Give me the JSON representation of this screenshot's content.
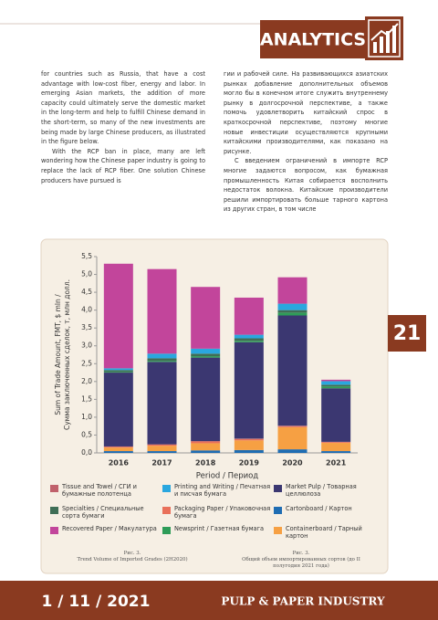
{
  "header": {
    "section": "ANALYTICS"
  },
  "page_number": "21",
  "left_column": [
    "for countries such as Russia, that have a cost advantage with low-cost fiber, energy and labor. In emerging Asian markets, the addition of more capacity could ultimately serve the domestic market in the long-term and help to fulfill Chinese demand in the short-term, so many of the new investments are being made by large Chinese producers, as illustrated in the figure below.",
    "With the RCP ban in place, many are left wondering how the Chinese paper industry is going to replace the lack of RCP fiber. One solution Chinese producers have pursued is"
  ],
  "right_column": [
    "гии и рабочей силе. На развивающихся азиатских рынках добавление дополнительных объемов могло бы в конечном итоге служить внутреннему рынку в долгосрочной перспективе, а также помочь удовлетворить китайский спрос в краткосрочной перспективе, поэтому многие новые инвестиции осуществляются крупными китайскими производителями, как показано на рисунке.",
    "С введением ограничений в импорте RCP многие задаются вопросом, как бумажная промышленность Китая собирается восполнить недостаток волокна. Китайские производители решили импортировать больше тарного картона из других стран, в том числе"
  ],
  "chart_data": {
    "type": "stacked_bar",
    "xlabel": "Period / Период",
    "ylabel": [
      "Sum of Trade Amount, FMT, $ mln /",
      "Сумма заключенных сделок, т, млн долл."
    ],
    "categories": [
      "2016",
      "2017",
      "2018",
      "2019",
      "2020",
      "2021"
    ],
    "ylim": [
      0,
      5.5
    ],
    "yticks": [
      {
        "value": 0,
        "label": "0,0"
      },
      {
        "value": 0.5,
        "label": "0,5"
      },
      {
        "value": 1,
        "label": "1,0"
      },
      {
        "value": 1.5,
        "label": "1,5"
      },
      {
        "value": 2,
        "label": "2,0"
      },
      {
        "value": 2.5,
        "label": "2,5"
      },
      {
        "value": 3,
        "label": "3,0"
      },
      {
        "value": 3.5,
        "label": "3,5"
      },
      {
        "value": 4,
        "label": "4,0"
      },
      {
        "value": 4.5,
        "label": "4,5"
      },
      {
        "value": 5,
        "label": "5,0"
      },
      {
        "value": 5.5,
        "label": "5,5"
      }
    ],
    "grid": false,
    "series": [
      {
        "name": "Cartonboard / Картон",
        "color": "#1f6db3",
        "values": [
          0.05,
          0.05,
          0.07,
          0.08,
          0.1,
          0.05
        ]
      },
      {
        "name": "Containerboard / Тарный картон",
        "color": "#f6a043",
        "values": [
          0.1,
          0.15,
          0.2,
          0.27,
          0.62,
          0.23
        ]
      },
      {
        "name": "Packaging Paper / Упаковочная бумага",
        "color": "#e9705a",
        "values": [
          0.02,
          0.03,
          0.05,
          0.04,
          0.03,
          0.02
        ]
      },
      {
        "name": "Tissue and Towel / СГИ и бумажные полотенца",
        "color": "#c0616b",
        "values": [
          0.01,
          0.01,
          0.01,
          0.01,
          0.01,
          0.01
        ]
      },
      {
        "name": "Market Pulp / Товарная целлюлоза",
        "color": "#3b3771",
        "values": [
          2.07,
          2.31,
          2.34,
          2.7,
          3.09,
          1.5
        ]
      },
      {
        "name": "Newsprint / Газетная бумага",
        "color": "#2e9c58",
        "values": [
          0.02,
          0.03,
          0.04,
          0.04,
          0.08,
          0.05
        ]
      },
      {
        "name": "Specialties / Специальные сорта бумаги",
        "color": "#3f6e56",
        "values": [
          0.05,
          0.07,
          0.07,
          0.07,
          0.07,
          0.05
        ]
      },
      {
        "name": "Printing and Writing / Печатная и писчая бумага",
        "color": "#2aa7df",
        "values": [
          0.05,
          0.13,
          0.14,
          0.1,
          0.18,
          0.1
        ]
      },
      {
        "name": "Recovered Paper / Макулатура",
        "color": "#c2459b",
        "values": [
          2.93,
          2.37,
          1.73,
          1.04,
          0.74,
          0.04
        ]
      }
    ]
  },
  "captions": [
    {
      "label": "Рис. 3.",
      "text": "Trend Volume of Imported Grades (2H2020)"
    },
    {
      "label": "Рис. 3.",
      "text": "Общий объем импортированных сортов (до II полугодия 2021 года)"
    }
  ],
  "footer": {
    "date": "1 / 11 / 2021",
    "publication": "PULP & PAPER INDUSTRY"
  }
}
